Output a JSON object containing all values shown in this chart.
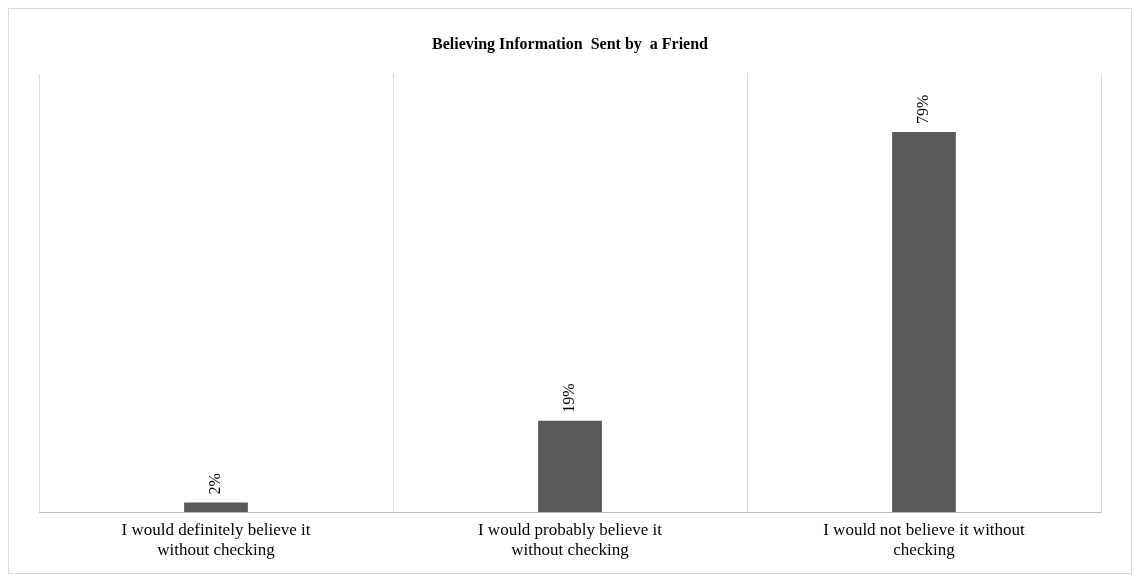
{
  "chart_data": {
    "type": "bar",
    "title": "Believing Information  Sent by  a Friend",
    "categories": [
      "I would definitely believe it without checking",
      "I would probably believe it without checking",
      "I would not believe it without checking"
    ],
    "values": [
      2,
      19,
      79
    ],
    "color": "#595959",
    "value_labels": [
      "2%",
      "19%",
      "79%"
    ],
    "ylim": [
      0,
      91
    ],
    "tick_labels": "x",
    "grid": "x",
    "legend": false
  }
}
